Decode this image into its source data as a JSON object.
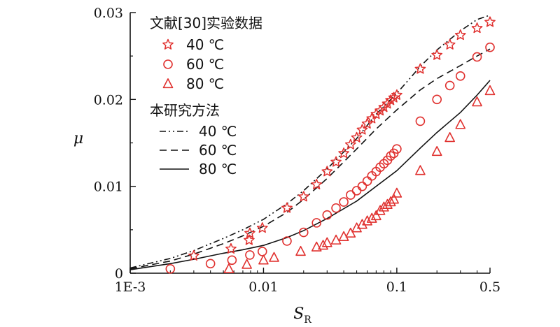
{
  "chart_data": {
    "type": "scatter",
    "title": "",
    "xlabel": "S",
    "xlabel_sub": "R",
    "ylabel": "μ",
    "xscale": "log",
    "xlim": [
      0.001,
      0.5
    ],
    "ylim": [
      0,
      0.03
    ],
    "xticks": [
      {
        "value": 0.001,
        "label": "1E-3"
      },
      {
        "value": 0.01,
        "label": "0.01"
      },
      {
        "value": 0.1,
        "label": "0.1"
      },
      {
        "value": 0.5,
        "label": "0.5"
      }
    ],
    "yticks": [
      {
        "value": 0,
        "label": "0"
      },
      {
        "value": 0.01,
        "label": "0.01"
      },
      {
        "value": 0.02,
        "label": "0.02"
      },
      {
        "value": 0.03,
        "label": "0.03"
      }
    ],
    "grid": false,
    "legend_position": "top-left",
    "legend_groups": [
      {
        "title": "文献[30]实验数据",
        "entries": [
          "40 ℃",
          "60 ℃",
          "80 ℃"
        ]
      },
      {
        "title": "本研究方法",
        "entries": [
          "40 ℃",
          "60 ℃",
          "80 ℃"
        ]
      }
    ],
    "marker_color": "#e0312f",
    "series": [
      {
        "name": "40 ℃",
        "kind": "experimental",
        "marker": "star",
        "x": [
          0.003,
          0.0057,
          0.0078,
          0.0079,
          0.0098,
          0.015,
          0.02,
          0.025,
          0.03,
          0.035,
          0.04,
          0.045,
          0.05,
          0.055,
          0.06,
          0.065,
          0.07,
          0.075,
          0.08,
          0.085,
          0.09,
          0.095,
          0.1,
          0.15,
          0.2,
          0.25,
          0.3,
          0.4,
          0.5
        ],
        "y": [
          0.002,
          0.0028,
          0.0038,
          0.0046,
          0.0052,
          0.0075,
          0.0088,
          0.0102,
          0.0117,
          0.0128,
          0.0138,
          0.0148,
          0.0156,
          0.0165,
          0.0172,
          0.0178,
          0.0183,
          0.0187,
          0.0191,
          0.0195,
          0.0199,
          0.0202,
          0.0205,
          0.0235,
          0.0251,
          0.0263,
          0.0274,
          0.0282,
          0.0289
        ]
      },
      {
        "name": "60 ℃",
        "kind": "experimental",
        "marker": "circle",
        "x": [
          0.002,
          0.004,
          0.0058,
          0.0079,
          0.0098,
          0.015,
          0.02,
          0.025,
          0.03,
          0.035,
          0.04,
          0.045,
          0.05,
          0.055,
          0.06,
          0.065,
          0.07,
          0.075,
          0.08,
          0.085,
          0.09,
          0.095,
          0.1,
          0.15,
          0.2,
          0.25,
          0.3,
          0.4,
          0.5
        ],
        "y": [
          0.0005,
          0.0011,
          0.0015,
          0.0021,
          0.0025,
          0.0037,
          0.0047,
          0.0058,
          0.0067,
          0.0075,
          0.0082,
          0.009,
          0.0095,
          0.01,
          0.0106,
          0.0112,
          0.0117,
          0.0122,
          0.0126,
          0.013,
          0.0135,
          0.0138,
          0.0143,
          0.0175,
          0.02,
          0.0216,
          0.0227,
          0.0249,
          0.026
        ]
      },
      {
        "name": "80 ℃",
        "kind": "experimental",
        "marker": "triangle",
        "x": [
          0.0055,
          0.0075,
          0.01,
          0.012,
          0.019,
          0.025,
          0.028,
          0.03,
          0.035,
          0.04,
          0.045,
          0.05,
          0.055,
          0.06,
          0.065,
          0.07,
          0.075,
          0.08,
          0.085,
          0.09,
          0.095,
          0.1,
          0.15,
          0.2,
          0.25,
          0.3,
          0.4,
          0.5
        ],
        "y": [
          0.0005,
          0.001,
          0.0015,
          0.0018,
          0.0025,
          0.003,
          0.0032,
          0.0035,
          0.0038,
          0.0042,
          0.0046,
          0.0052,
          0.0056,
          0.006,
          0.0063,
          0.0066,
          0.0072,
          0.0076,
          0.0079,
          0.0082,
          0.0085,
          0.0092,
          0.0118,
          0.014,
          0.0156,
          0.0171,
          0.0197,
          0.021
        ]
      },
      {
        "name": "40 ℃",
        "kind": "model",
        "line_style": "dash-dot-dot",
        "x": [
          0.001,
          0.002,
          0.003,
          0.005,
          0.007,
          0.01,
          0.015,
          0.02,
          0.03,
          0.05,
          0.07,
          0.1,
          0.15,
          0.2,
          0.3,
          0.4,
          0.5
        ],
        "y": [
          0.0006,
          0.0017,
          0.0026,
          0.004,
          0.005,
          0.0062,
          0.008,
          0.0095,
          0.012,
          0.0155,
          0.0183,
          0.0207,
          0.0238,
          0.0257,
          0.0279,
          0.0292,
          0.0297
        ]
      },
      {
        "name": "60 ℃",
        "kind": "model",
        "line_style": "dashed",
        "x": [
          0.001,
          0.002,
          0.003,
          0.005,
          0.007,
          0.01,
          0.015,
          0.02,
          0.03,
          0.05,
          0.07,
          0.1,
          0.15,
          0.2,
          0.3,
          0.4,
          0.5
        ],
        "y": [
          0.0005,
          0.0014,
          0.0022,
          0.0034,
          0.0043,
          0.0054,
          0.007,
          0.0085,
          0.0109,
          0.0143,
          0.0166,
          0.0188,
          0.0211,
          0.0224,
          0.0239,
          0.025,
          0.0258
        ]
      },
      {
        "name": "80 ℃",
        "kind": "model",
        "line_style": "solid",
        "x": [
          0.001,
          0.002,
          0.003,
          0.005,
          0.007,
          0.01,
          0.015,
          0.02,
          0.03,
          0.05,
          0.07,
          0.1,
          0.15,
          0.2,
          0.3,
          0.4,
          0.5
        ],
        "y": [
          0.0004,
          0.0011,
          0.0016,
          0.0023,
          0.0027,
          0.0032,
          0.0041,
          0.0049,
          0.0063,
          0.0083,
          0.01,
          0.0118,
          0.0144,
          0.0162,
          0.0185,
          0.0205,
          0.0222
        ]
      }
    ]
  }
}
